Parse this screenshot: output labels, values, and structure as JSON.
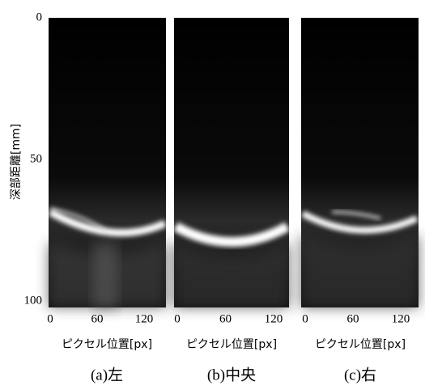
{
  "figure": {
    "y_label": "深部距離[mm]",
    "y_ticks": [
      "0",
      "50",
      "100"
    ],
    "panels": [
      {
        "x_ticks": [
          "0",
          "60",
          "120"
        ],
        "x_label": "ピクセル位置[px]",
        "caption": "(a)左"
      },
      {
        "x_ticks": [
          "0",
          "60",
          "120"
        ],
        "x_label": "ピクセル位置[px]",
        "caption": "(b)中央"
      },
      {
        "x_ticks": [
          "0",
          "60",
          "120"
        ],
        "x_label": "ピクセル位置[px]",
        "caption": "(c)右"
      }
    ]
  }
}
